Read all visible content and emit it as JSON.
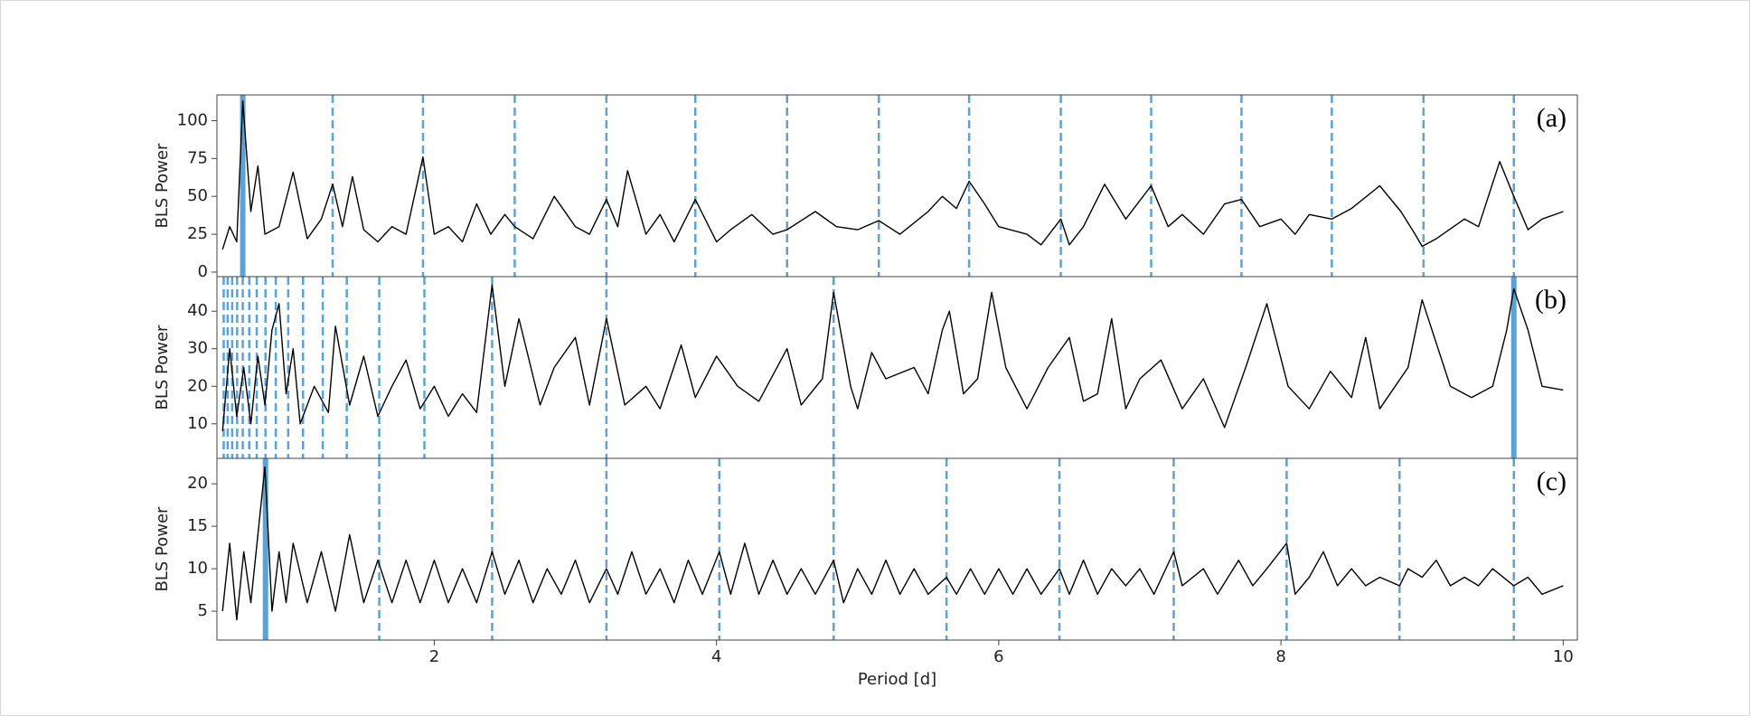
{
  "chart_data": [
    {
      "type": "line",
      "annotation": "(a)",
      "y_label": "BLS Power",
      "color": "#000000",
      "marker_color": "#5ba3d6",
      "xlim": [
        0.46,
        10.1
      ],
      "ylim": [
        -3,
        117
      ],
      "yticks": [
        0,
        25,
        50,
        75,
        100
      ],
      "peak": 0.643,
      "harmonics": [
        1.28,
        1.92,
        2.57,
        3.22,
        3.85,
        4.5,
        5.15,
        5.79,
        6.44,
        7.08,
        7.72,
        8.36,
        9.01,
        9.65
      ],
      "x": [
        0.5,
        0.55,
        0.6,
        0.643,
        0.7,
        0.75,
        0.8,
        0.9,
        1.0,
        1.1,
        1.2,
        1.28,
        1.35,
        1.42,
        1.5,
        1.6,
        1.7,
        1.8,
        1.92,
        2.0,
        2.1,
        2.2,
        2.3,
        2.4,
        2.5,
        2.57,
        2.7,
        2.85,
        3.0,
        3.1,
        3.22,
        3.3,
        3.37,
        3.5,
        3.6,
        3.7,
        3.85,
        4.0,
        4.1,
        4.25,
        4.4,
        4.5,
        4.7,
        4.85,
        5.0,
        5.15,
        5.3,
        5.5,
        5.6,
        5.7,
        5.79,
        5.9,
        6.0,
        6.2,
        6.3,
        6.44,
        6.5,
        6.6,
        6.75,
        6.9,
        7.08,
        7.2,
        7.3,
        7.45,
        7.6,
        7.72,
        7.85,
        8.0,
        8.1,
        8.2,
        8.36,
        8.5,
        8.7,
        8.85,
        8.95,
        9.0,
        9.1,
        9.3,
        9.4,
        9.55,
        9.65,
        9.75,
        9.85,
        10.0
      ],
      "values": [
        15,
        30,
        20,
        113,
        40,
        70,
        25,
        30,
        66,
        22,
        35,
        58,
        30,
        63,
        28,
        20,
        30,
        25,
        76,
        25,
        30,
        20,
        45,
        25,
        38,
        30,
        22,
        50,
        30,
        25,
        48,
        30,
        67,
        25,
        38,
        20,
        48,
        20,
        28,
        38,
        25,
        28,
        40,
        30,
        28,
        34,
        25,
        40,
        50,
        42,
        60,
        45,
        30,
        25,
        18,
        35,
        18,
        30,
        58,
        35,
        57,
        30,
        38,
        25,
        45,
        48,
        30,
        35,
        25,
        38,
        35,
        42,
        57,
        40,
        25,
        17,
        22,
        35,
        30,
        73,
        50,
        28,
        35,
        40
      ]
    },
    {
      "type": "line",
      "annotation": "(b)",
      "y_label": "BLS Power",
      "color": "#000000",
      "marker_color": "#5ba3d6",
      "xlim": [
        0.46,
        10.1
      ],
      "ylim": [
        0.8,
        49.2
      ],
      "yticks": [
        10,
        20,
        30,
        40
      ],
      "peak": 9.65,
      "harmonics": [
        4.83,
        3.22,
        2.41,
        1.93,
        1.61,
        1.38,
        1.21,
        1.07,
        0.965,
        0.877,
        0.804,
        0.742,
        0.689,
        0.643,
        0.603,
        0.568,
        0.536,
        0.508
      ],
      "x": [
        0.5,
        0.55,
        0.6,
        0.65,
        0.7,
        0.75,
        0.8,
        0.85,
        0.9,
        0.95,
        1.0,
        1.05,
        1.15,
        1.25,
        1.3,
        1.4,
        1.5,
        1.6,
        1.7,
        1.8,
        1.9,
        2.0,
        2.1,
        2.2,
        2.3,
        2.41,
        2.5,
        2.6,
        2.75,
        2.85,
        3.0,
        3.1,
        3.22,
        3.35,
        3.5,
        3.6,
        3.75,
        3.85,
        4.0,
        4.15,
        4.3,
        4.5,
        4.6,
        4.75,
        4.83,
        4.95,
        5.0,
        5.1,
        5.2,
        5.4,
        5.5,
        5.6,
        5.65,
        5.75,
        5.85,
        5.95,
        6.05,
        6.2,
        6.35,
        6.5,
        6.6,
        6.7,
        6.8,
        6.9,
        7.0,
        7.15,
        7.3,
        7.45,
        7.6,
        7.75,
        7.9,
        8.05,
        8.2,
        8.35,
        8.5,
        8.6,
        8.7,
        8.9,
        9.0,
        9.2,
        9.35,
        9.5,
        9.6,
        9.65,
        9.75,
        9.85,
        10.0
      ],
      "values": [
        8,
        30,
        12,
        25,
        10,
        28,
        15,
        35,
        42,
        18,
        30,
        10,
        20,
        13,
        36,
        15,
        28,
        12,
        20,
        27,
        14,
        20,
        12,
        18,
        13,
        47,
        20,
        38,
        15,
        25,
        33,
        15,
        38,
        15,
        20,
        14,
        31,
        17,
        28,
        20,
        16,
        30,
        15,
        22,
        45,
        20,
        14,
        29,
        22,
        25,
        18,
        35,
        40,
        18,
        22,
        45,
        25,
        14,
        25,
        33,
        16,
        18,
        38,
        14,
        22,
        27,
        14,
        22,
        9,
        25,
        42,
        20,
        14,
        24,
        17,
        33,
        14,
        25,
        43,
        20,
        17,
        20,
        35,
        46,
        35,
        20,
        19
      ]
    },
    {
      "type": "line",
      "annotation": "(c)",
      "y_label": "BLS Power",
      "x_label": "Period [d]",
      "color": "#000000",
      "marker_color": "#5ba3d6",
      "xlim": [
        0.46,
        10.1
      ],
      "ylim": [
        1.6,
        23
      ],
      "yticks": [
        5,
        10,
        15,
        20
      ],
      "xticks": [
        2,
        4,
        6,
        8,
        10
      ],
      "peak": 0.804,
      "harmonics": [
        1.61,
        2.41,
        3.22,
        4.02,
        4.83,
        5.63,
        6.43,
        7.24,
        8.04,
        8.84,
        9.65
      ],
      "x": [
        0.5,
        0.55,
        0.6,
        0.65,
        0.7,
        0.75,
        0.8,
        0.85,
        0.9,
        0.95,
        1.0,
        1.1,
        1.2,
        1.3,
        1.4,
        1.5,
        1.6,
        1.7,
        1.8,
        1.9,
        2.0,
        2.1,
        2.2,
        2.3,
        2.41,
        2.5,
        2.6,
        2.7,
        2.8,
        2.9,
        3.0,
        3.1,
        3.22,
        3.3,
        3.4,
        3.5,
        3.6,
        3.7,
        3.8,
        3.9,
        4.02,
        4.1,
        4.2,
        4.3,
        4.4,
        4.5,
        4.6,
        4.7,
        4.83,
        4.9,
        5.0,
        5.1,
        5.2,
        5.3,
        5.4,
        5.5,
        5.63,
        5.7,
        5.8,
        5.9,
        6.0,
        6.1,
        6.2,
        6.3,
        6.43,
        6.5,
        6.6,
        6.7,
        6.8,
        6.9,
        7.0,
        7.1,
        7.24,
        7.3,
        7.45,
        7.55,
        7.7,
        7.8,
        7.9,
        8.04,
        8.1,
        8.2,
        8.3,
        8.4,
        8.5,
        8.6,
        8.7,
        8.84,
        8.9,
        9.0,
        9.1,
        9.2,
        9.3,
        9.4,
        9.5,
        9.65,
        9.75,
        9.85,
        10.0
      ],
      "values": [
        5,
        13,
        4,
        12,
        6,
        14,
        22,
        5,
        12,
        6,
        13,
        6,
        12,
        5,
        14,
        6,
        11,
        6,
        11,
        6,
        11,
        6,
        10,
        6,
        12,
        7,
        11,
        6,
        10,
        7,
        11,
        6,
        10,
        7,
        12,
        7,
        10,
        6,
        11,
        7,
        12,
        7,
        13,
        7,
        11,
        7,
        10,
        7,
        11,
        6,
        10,
        7,
        11,
        7,
        10,
        7,
        9,
        7,
        10,
        7,
        10,
        7,
        10,
        7,
        10,
        7,
        11,
        7,
        10,
        8,
        10,
        7,
        12,
        8,
        10,
        7,
        11,
        8,
        10,
        13,
        7,
        9,
        12,
        8,
        10,
        8,
        9,
        8,
        10,
        9,
        11,
        8,
        9,
        8,
        10,
        8,
        9,
        7,
        8
      ]
    }
  ]
}
